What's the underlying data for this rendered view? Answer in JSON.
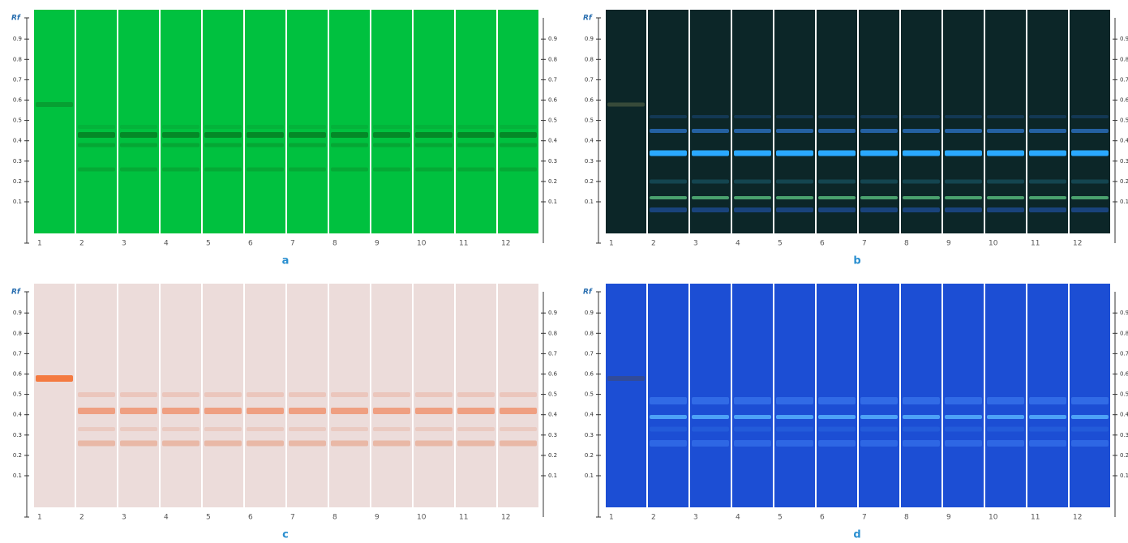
{
  "panels": [
    {
      "label": "a",
      "axis_title": "Rf",
      "left_ticks": [
        "0.1",
        "0.2",
        "0.3",
        "0.4",
        "0.5",
        "0.6",
        "0.7",
        "0.8",
        "0.9"
      ],
      "right_ticks": [
        "0.1",
        "0.2",
        "0.3",
        "0.4",
        "0.5",
        "0.6",
        "0.7",
        "0.8",
        "0.9"
      ],
      "lanes": [
        "1",
        "2",
        "3",
        "4",
        "5",
        "6",
        "7",
        "8",
        "9",
        "10",
        "11",
        "12"
      ]
    },
    {
      "label": "b",
      "axis_title": "Rf",
      "left_ticks": [
        "0.1",
        "0.2",
        "0.3",
        "0.4",
        "0.5",
        "0.6",
        "0.7",
        "0.8",
        "0.9"
      ],
      "right_ticks": [
        "0.1",
        "0.2",
        "0.3",
        "0.4",
        "0.5",
        "0.6",
        "0.7",
        "0.8",
        "0.9"
      ],
      "lanes": [
        "1",
        "2",
        "3",
        "4",
        "5",
        "6",
        "7",
        "8",
        "9",
        "10",
        "11",
        "12"
      ]
    },
    {
      "label": "c",
      "axis_title": "Rf",
      "left_ticks": [
        "0.1",
        "0.2",
        "0.3",
        "0.4",
        "0.5",
        "0.6",
        "0.7",
        "0.8",
        "0.9"
      ],
      "right_ticks": [
        "0.1",
        "0.2",
        "0.3",
        "0.4",
        "0.5",
        "0.6",
        "0.7",
        "0.8",
        "0.9"
      ],
      "lanes": [
        "1",
        "2",
        "3",
        "4",
        "5",
        "6",
        "7",
        "8",
        "9",
        "10",
        "11",
        "12"
      ]
    },
    {
      "label": "d",
      "axis_title": "Rf",
      "left_ticks": [
        "0.1",
        "0.2",
        "0.3",
        "0.4",
        "0.5",
        "0.6",
        "0.7",
        "0.8",
        "0.9"
      ],
      "right_ticks": [
        "0.1",
        "0.2",
        "0.3",
        "0.4",
        "0.5",
        "0.6",
        "0.7",
        "0.8",
        "0.9"
      ],
      "lanes": [
        "1",
        "2",
        "3",
        "4",
        "5",
        "6",
        "7",
        "8",
        "9",
        "10",
        "11",
        "12"
      ]
    }
  ]
}
